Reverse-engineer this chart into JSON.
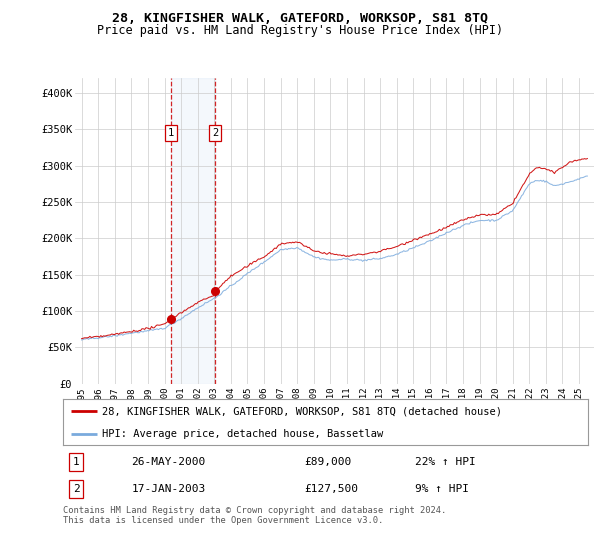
{
  "title": "28, KINGFISHER WALK, GATEFORD, WORKSOP, S81 8TQ",
  "subtitle": "Price paid vs. HM Land Registry's House Price Index (HPI)",
  "ylim": [
    0,
    420000
  ],
  "yticks": [
    0,
    50000,
    100000,
    150000,
    200000,
    250000,
    300000,
    350000,
    400000
  ],
  "ytick_labels": [
    "£0",
    "£50K",
    "£100K",
    "£150K",
    "£200K",
    "£250K",
    "£300K",
    "£350K",
    "£400K"
  ],
  "sale1_date": 2000.38,
  "sale1_price": 89000,
  "sale1_label": "1",
  "sale2_date": 2003.04,
  "sale2_price": 127500,
  "sale2_label": "2",
  "hpi_color": "#7aaadd",
  "price_color": "#cc0000",
  "legend_line1": "28, KINGFISHER WALK, GATEFORD, WORKSOP, S81 8TQ (detached house)",
  "legend_line2": "HPI: Average price, detached house, Bassetlaw",
  "table_row1_num": "1",
  "table_row1_date": "26-MAY-2000",
  "table_row1_price": "£89,000",
  "table_row1_hpi": "22% ↑ HPI",
  "table_row2_num": "2",
  "table_row2_date": "17-JAN-2003",
  "table_row2_price": "£127,500",
  "table_row2_hpi": "9% ↑ HPI",
  "footnote1": "Contains HM Land Registry data © Crown copyright and database right 2024.",
  "footnote2": "This data is licensed under the Open Government Licence v3.0.",
  "background_color": "#ffffff",
  "grid_color": "#cccccc",
  "hpi_anchors_x": [
    1995,
    1996,
    1997,
    1998,
    1999,
    2000,
    2001,
    2002,
    2003,
    2004,
    2005,
    2006,
    2007,
    2008,
    2009,
    2010,
    2011,
    2012,
    2013,
    2014,
    2015,
    2016,
    2017,
    2018,
    2019,
    2020,
    2021,
    2022,
    2022.5,
    2023,
    2023.5,
    2024,
    2024.5,
    2025,
    2025.5
  ],
  "hpi_anchors_y": [
    60000,
    63000,
    66000,
    70000,
    73000,
    77000,
    90000,
    105000,
    118000,
    135000,
    152000,
    168000,
    185000,
    188000,
    175000,
    170000,
    172000,
    170000,
    172000,
    178000,
    187000,
    196000,
    208000,
    218000,
    225000,
    225000,
    238000,
    275000,
    280000,
    278000,
    272000,
    275000,
    278000,
    282000,
    285000
  ],
  "price_anchors_x": [
    1995,
    1996,
    1997,
    1998,
    1999,
    2000,
    2000.38,
    2001,
    2002,
    2003,
    2003.04,
    2004,
    2005,
    2006,
    2007,
    2008,
    2009,
    2010,
    2011,
    2012,
    2013,
    2014,
    2015,
    2016,
    2017,
    2018,
    2019,
    2020,
    2021,
    2021.5,
    2022,
    2022.5,
    2023,
    2023.5,
    2024,
    2024.5,
    2025,
    2025.5
  ],
  "price_anchors_y": [
    62000,
    65000,
    68000,
    72000,
    76000,
    82000,
    89000,
    98000,
    112000,
    122000,
    127500,
    148000,
    162000,
    175000,
    192000,
    195000,
    182000,
    178000,
    175000,
    178000,
    182000,
    188000,
    198000,
    206000,
    215000,
    225000,
    232000,
    232000,
    248000,
    268000,
    288000,
    298000,
    295000,
    290000,
    298000,
    305000,
    308000,
    310000
  ]
}
